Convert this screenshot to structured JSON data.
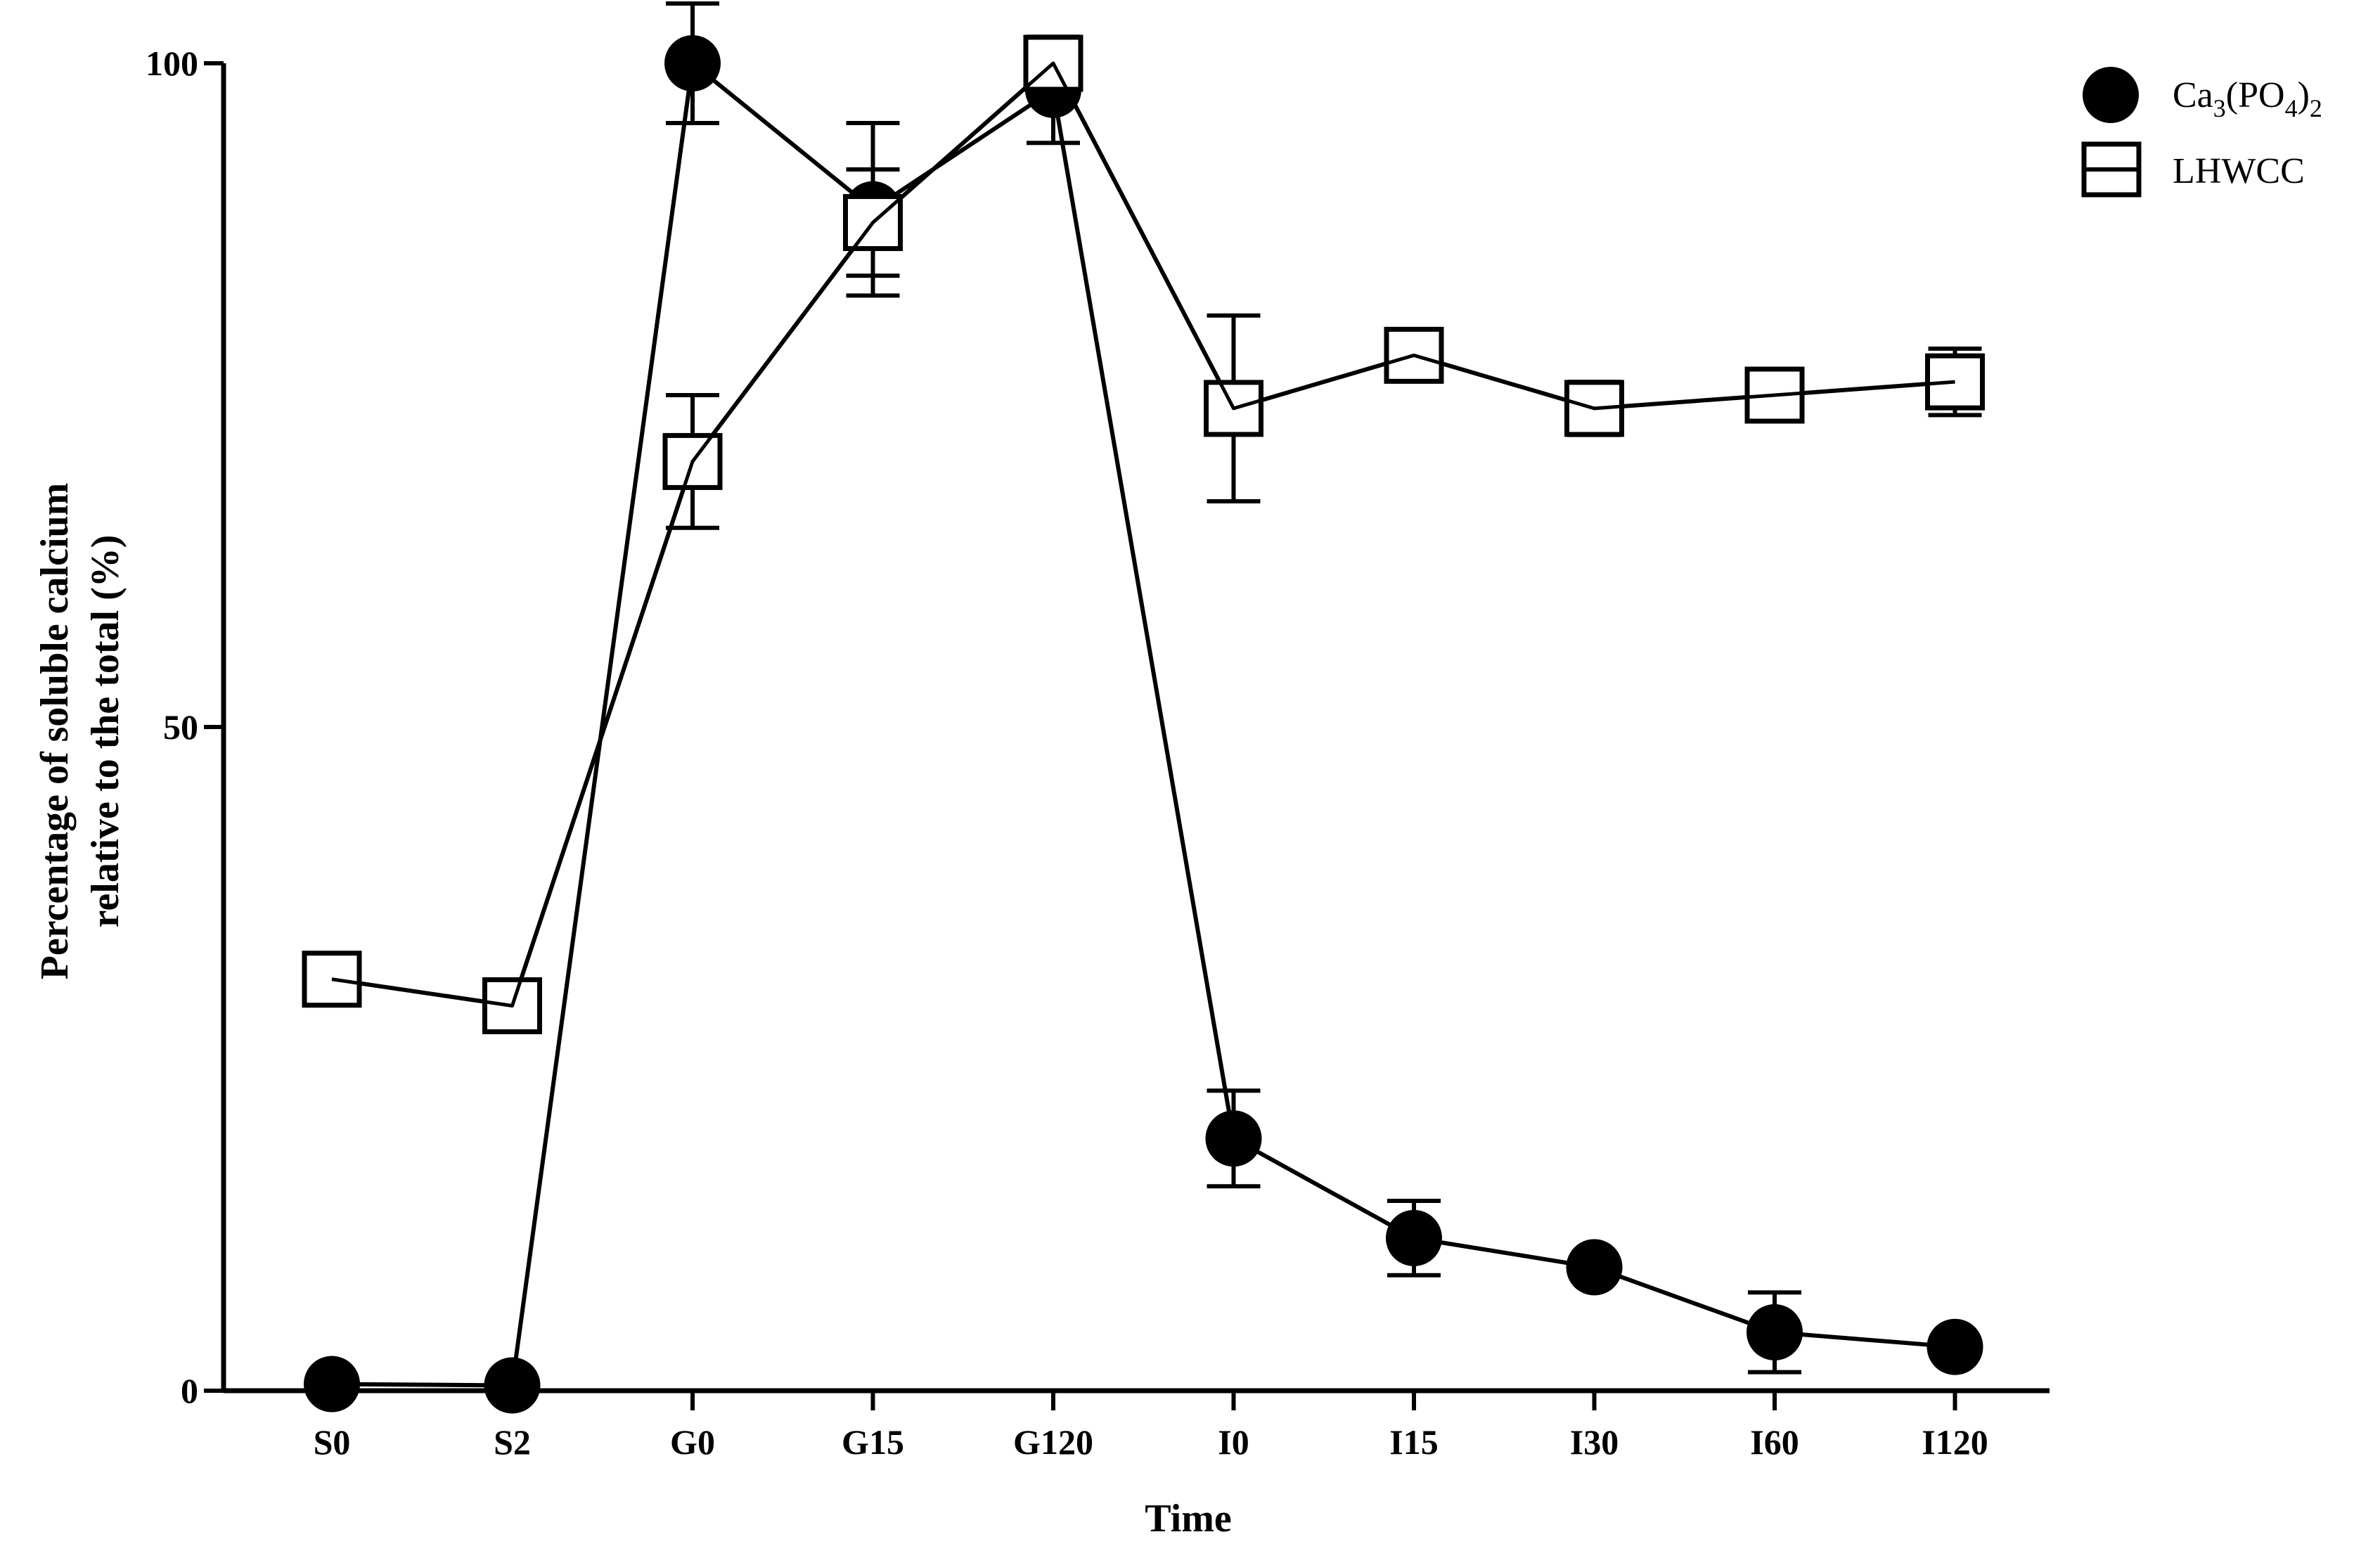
{
  "chart_data": {
    "type": "line",
    "title": "",
    "xlabel": "Time",
    "ylabel_lines": [
      "Percentage of soluble calcium",
      "relative to the total (%)"
    ],
    "categories": [
      "S0",
      "S2",
      "G0",
      "G15",
      "G120",
      "I0",
      "I15",
      "I30",
      "I60",
      "I120"
    ],
    "ylim": [
      0,
      100
    ],
    "yticks": [
      "0",
      "50",
      "100"
    ],
    "legend_position": "top-right",
    "grid": false,
    "series": [
      {
        "name": "Ca3(PO4)2",
        "legend": {
          "base": "Ca",
          "sub1": "3",
          "mid": "(PO",
          "sub2": "4",
          "close": ")",
          "sub3": "2"
        },
        "marker": "filled-circle",
        "color": "#000000",
        "values": [
          0.5,
          0.4,
          100,
          89,
          98,
          19,
          11.5,
          9.3,
          4.4,
          3.3
        ],
        "errors": [
          0,
          0,
          4.5,
          6.5,
          4,
          3.6,
          2.8,
          0,
          3,
          0
        ]
      },
      {
        "name": "LHWCC",
        "legend": {
          "base": "LHWCC"
        },
        "marker": "open-square",
        "color": "#000000",
        "values": [
          31,
          29,
          70,
          88,
          100,
          74,
          78,
          74,
          75,
          76
        ],
        "errors": [
          0,
          0,
          5,
          4,
          0,
          7,
          0,
          2,
          0,
          2.5
        ]
      }
    ]
  }
}
